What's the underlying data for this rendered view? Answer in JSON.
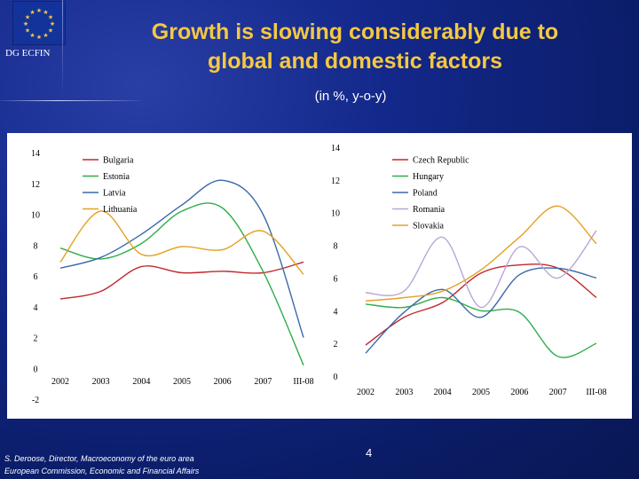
{
  "header": {
    "title_line1": "Growth is slowing considerably due to",
    "title_line2": "global and domestic factors",
    "subtitle": "(in %, y-o-y)",
    "org_label": "DG ECFIN"
  },
  "footer": {
    "author": "S. Deroose, Director, Macroeconomy of the euro area",
    "institution": "European Commission, Economic and Financial Affairs",
    "page_number": "4"
  },
  "colors": {
    "background": "#0b1f6e",
    "title": "#f5c842"
  },
  "chart_data": [
    {
      "type": "line",
      "categories": [
        "2002",
        "2003",
        "2004",
        "2005",
        "2006",
        "2007",
        "III-08"
      ],
      "ylim": [
        -2,
        14
      ],
      "yticks": [
        "-2",
        "0",
        "2",
        "4",
        "6",
        "8",
        "10",
        "12",
        "14"
      ],
      "series": [
        {
          "name": "Bulgaria",
          "color": "#c0282d",
          "values": [
            4.5,
            5.0,
            6.6,
            6.2,
            6.3,
            6.2,
            6.9
          ]
        },
        {
          "name": "Estonia",
          "color": "#2fae4a",
          "values": [
            7.8,
            7.1,
            8.1,
            10.2,
            10.4,
            6.3,
            0.2
          ]
        },
        {
          "name": "Latvia",
          "color": "#3a6aa8",
          "values": [
            6.5,
            7.2,
            8.7,
            10.6,
            12.2,
            10.0,
            2.0
          ]
        },
        {
          "name": "Lithuania",
          "color": "#e3a223",
          "values": [
            6.9,
            10.2,
            7.4,
            7.9,
            7.7,
            8.9,
            6.1
          ]
        }
      ]
    },
    {
      "type": "line",
      "categories": [
        "2002",
        "2003",
        "2004",
        "2005",
        "2006",
        "2007",
        "III-08"
      ],
      "ylim": [
        0,
        14
      ],
      "yticks": [
        "0",
        "2",
        "4",
        "6",
        "8",
        "10",
        "12",
        "14"
      ],
      "series": [
        {
          "name": "Czech Republic",
          "color": "#c0282d",
          "values": [
            1.9,
            3.6,
            4.5,
            6.3,
            6.8,
            6.6,
            4.8
          ]
        },
        {
          "name": "Hungary",
          "color": "#2fae4a",
          "values": [
            4.4,
            4.2,
            4.8,
            4.0,
            3.9,
            1.2,
            2.0
          ]
        },
        {
          "name": "Poland",
          "color": "#3a6aa8",
          "values": [
            1.4,
            3.9,
            5.3,
            3.6,
            6.2,
            6.6,
            6.0
          ]
        },
        {
          "name": "Romania",
          "color": "#b8a6d6",
          "values": [
            5.1,
            5.2,
            8.5,
            4.2,
            7.9,
            6.0,
            8.9
          ]
        },
        {
          "name": "Slovakia",
          "color": "#e3a223",
          "values": [
            4.6,
            4.8,
            5.2,
            6.5,
            8.5,
            10.4,
            8.1
          ]
        }
      ]
    }
  ]
}
